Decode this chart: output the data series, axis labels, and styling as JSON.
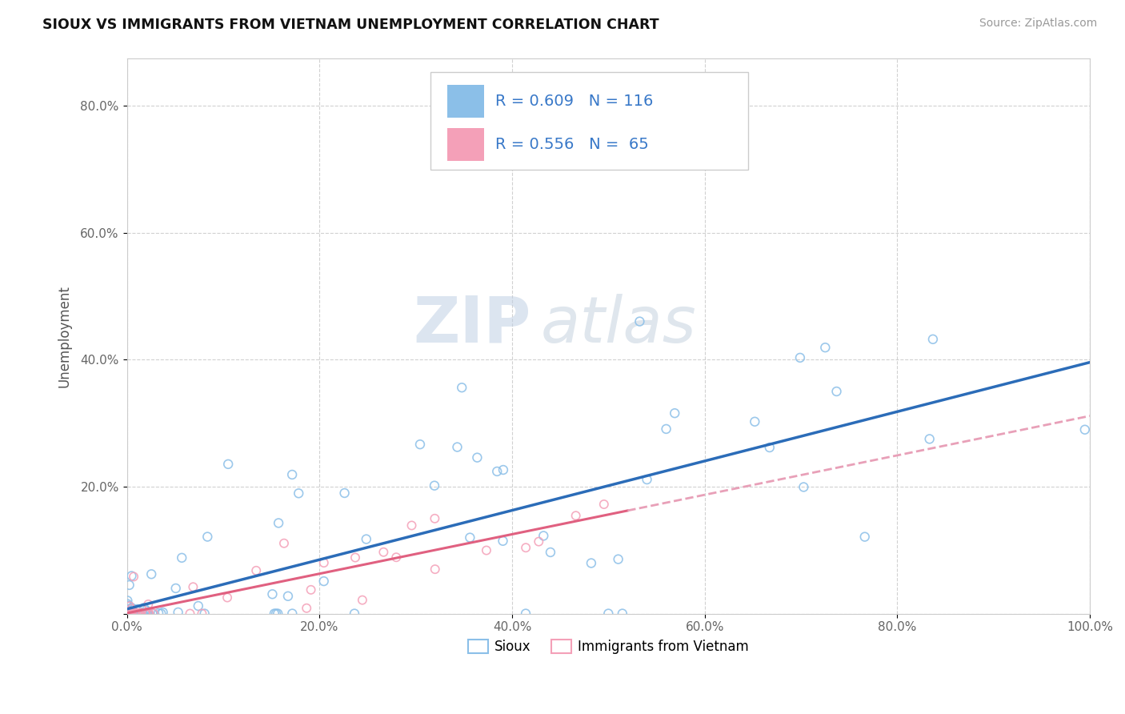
{
  "title": "SIOUX VS IMMIGRANTS FROM VIETNAM UNEMPLOYMENT CORRELATION CHART",
  "source": "Source: ZipAtlas.com",
  "ylabel": "Unemployment",
  "sioux_color": "#8BBFE8",
  "vietnam_color": "#F4A0B8",
  "sioux_line_color": "#2B6CB8",
  "vietnam_line_color": "#E06080",
  "vietnam_dash_color": "#E8A0B8",
  "sioux_R": 0.609,
  "sioux_N": 116,
  "vietnam_R": 0.556,
  "vietnam_N": 65,
  "watermark_zip": "ZIP",
  "watermark_atlas": "atlas",
  "legend_labels": [
    "Sioux",
    "Immigrants from Vietnam"
  ],
  "xlim": [
    0.0,
    1.0
  ],
  "ylim": [
    0.0,
    0.875
  ],
  "xticks": [
    0.0,
    0.2,
    0.4,
    0.6,
    0.8,
    1.0
  ],
  "yticks": [
    0.0,
    0.2,
    0.4,
    0.6,
    0.8
  ],
  "xticklabels": [
    "0.0%",
    "20.0%",
    "40.0%",
    "60.0%",
    "80.0%",
    "100.0%"
  ],
  "yticklabels": [
    "",
    "20.0%",
    "40.0%",
    "60.0%",
    "80.0%"
  ],
  "background_color": "#ffffff",
  "grid_color": "#cccccc"
}
